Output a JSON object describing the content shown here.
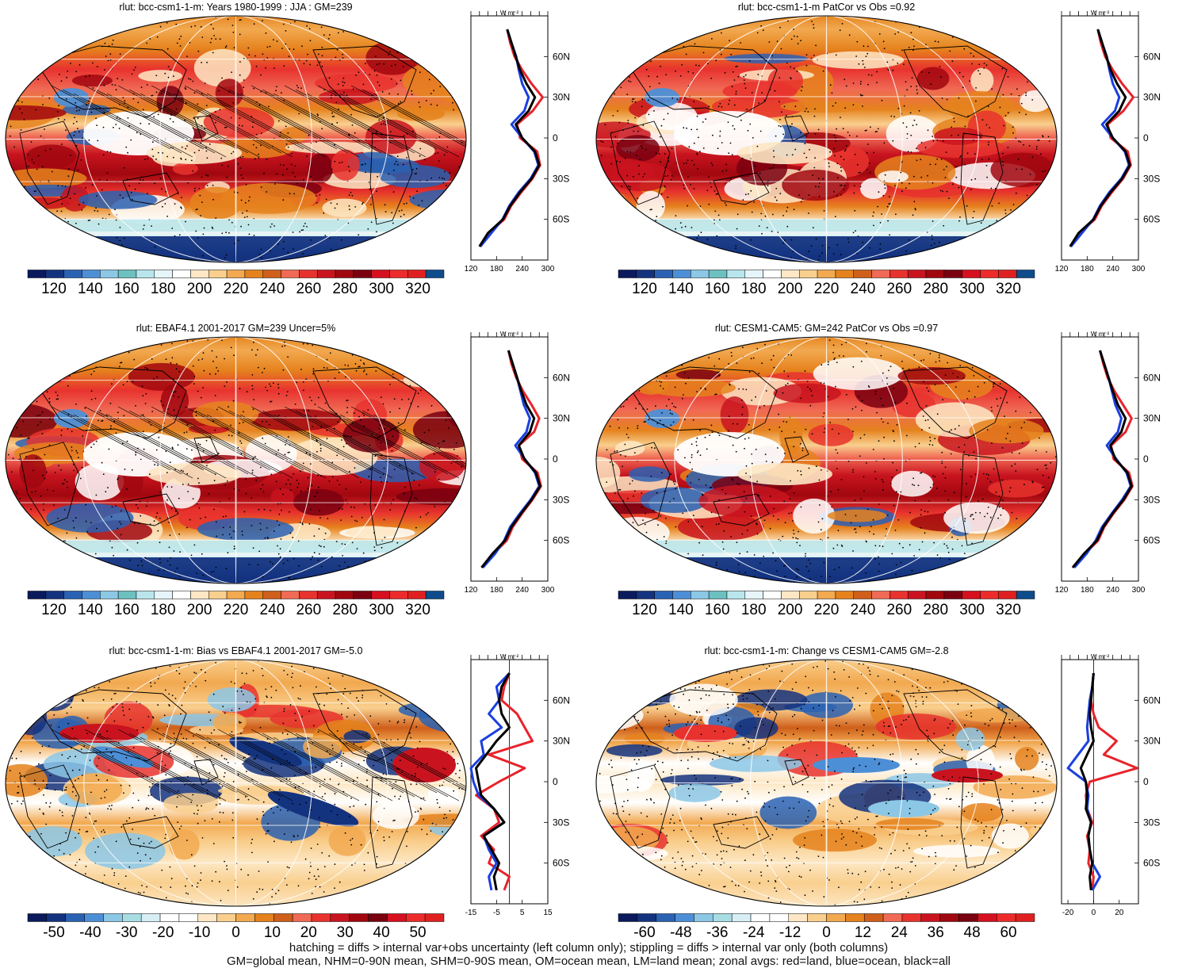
{
  "palette": {
    "full": [
      "#0a1a5c",
      "#14337f",
      "#2a62b3",
      "#4d8fd6",
      "#8cc7e6",
      "#6cc0c0",
      "#b8e6ec",
      "#e6f5f9",
      "#ffffff",
      "#fde7c4",
      "#f9cf8e",
      "#f2a950",
      "#e5821d",
      "#cf5f1a",
      "#f06a55",
      "#e8322e",
      "#c9141f",
      "#a1070f",
      "#7a0010",
      "#d6101f",
      "#ee2b2b",
      "#e02020",
      "#0e4c8c"
    ],
    "diff": [
      "#0a1a5c",
      "#14337f",
      "#2a62b3",
      "#4d8fd6",
      "#8cc7e6",
      "#a8dde4",
      "#d7eef5",
      "#ffffff",
      "#ffffff",
      "#fde7c4",
      "#f9cf8e",
      "#f2a950",
      "#e5821d",
      "#cf5f1a",
      "#f06a55",
      "#e8322e",
      "#c9141f",
      "#a1070f",
      "#7a0010",
      "#d6101f",
      "#ee2b2b",
      "#e02020"
    ]
  },
  "colors": {
    "land": "#e8232b",
    "ocean": "#1a3fe0",
    "all": "#000000"
  },
  "panels": [
    {
      "id": "p1",
      "title": "rlut: bcc-csm1-1-m: Years 1980-1999 : JJA : GM=239",
      "kind": "mean",
      "hatch": true,
      "colorbar_labels": [
        "120",
        "140",
        "160",
        "180",
        "200",
        "220",
        "240",
        "260",
        "280",
        "300",
        "320"
      ],
      "zonal_axis_top": "W m⁻²",
      "zonal_ticks": [
        "120",
        "180",
        "240",
        "300"
      ],
      "lat_labels": [
        "60N",
        "30N",
        "0",
        "30S",
        "60S"
      ]
    },
    {
      "id": "p2",
      "title": "rlut: bcc-csm1-1-m PatCor vs Obs =0.92",
      "kind": "mean",
      "hatch": false,
      "colorbar_labels": [
        "120",
        "140",
        "160",
        "180",
        "200",
        "220",
        "240",
        "260",
        "280",
        "300",
        "320"
      ],
      "zonal_axis_top": "W m⁻²",
      "zonal_ticks": [
        "120",
        "180",
        "240",
        "300"
      ],
      "lat_labels": [
        "60N",
        "30N",
        "0",
        "30S",
        "60S"
      ]
    },
    {
      "id": "p3",
      "title": "rlut: EBAF4.1 2001-2017 GM=239 Uncer=5%",
      "kind": "mean",
      "hatch": true,
      "colorbar_labels": [
        "120",
        "140",
        "160",
        "180",
        "200",
        "220",
        "240",
        "260",
        "280",
        "300",
        "320"
      ],
      "zonal_axis_top": "W m⁻²",
      "zonal_ticks": [
        "120",
        "180",
        "240",
        "300"
      ],
      "lat_labels": [
        "60N",
        "30N",
        "0",
        "30S",
        "60S"
      ]
    },
    {
      "id": "p4",
      "title": "rlut: CESM1-CAM5: GM=242 PatCor vs Obs =0.97",
      "kind": "mean",
      "hatch": false,
      "colorbar_labels": [
        "120",
        "140",
        "160",
        "180",
        "200",
        "220",
        "240",
        "260",
        "280",
        "300",
        "320"
      ],
      "zonal_axis_top": "W m⁻²",
      "zonal_ticks": [
        "120",
        "180",
        "240",
        "300"
      ],
      "lat_labels": [
        "60N",
        "30N",
        "0",
        "30S",
        "60S"
      ]
    },
    {
      "id": "p5",
      "title": "rlut: bcc-csm1-1-m: Bias vs EBAF4.1 2001-2017 GM=-5.0",
      "kind": "diff",
      "hatch": true,
      "colorbar_labels": [
        "-50",
        "-40",
        "-30",
        "-20",
        "-10",
        "0",
        "10",
        "20",
        "30",
        "40",
        "50"
      ],
      "zonal_axis_top": "W m⁻²",
      "zonal_ticks": [
        "-15",
        "-5",
        "5",
        "15"
      ],
      "lat_labels": [
        "60N",
        "30N",
        "0",
        "30S",
        "60S"
      ]
    },
    {
      "id": "p6",
      "title": "rlut: bcc-csm1-1-m: Change vs CESM1-CAM5 GM=-2.8",
      "kind": "diff",
      "hatch": false,
      "colorbar_labels": [
        "-60",
        "-48",
        "-36",
        "-24",
        "-12",
        "0",
        "12",
        "24",
        "36",
        "48",
        "60"
      ],
      "zonal_axis_top": "W m⁻²",
      "zonal_ticks": [
        "-20",
        "0",
        "20"
      ],
      "lat_labels": [
        "60N",
        "30N",
        "0",
        "30S",
        "60S"
      ]
    }
  ],
  "footer": {
    "line1": "hatching = diffs > internal var+obs uncertainty (left column only); stippling = diffs > internal var only (both columns)",
    "line2": "GM=global mean, NHM=0-90N mean, SHM=0-90S mean, OM=ocean mean, LM=land mean; zonal avgs: red=land, blue=ocean, black=all"
  },
  "chart_data": [
    {
      "type": "heatmap",
      "title": "rlut: bcc-csm1-1-m: Years 1980-1999 : JJA : GM=239",
      "colorbar_range": [
        120,
        320
      ],
      "zonal_profile": {
        "lat": [
          -80,
          -70,
          -60,
          -50,
          -40,
          -30,
          -20,
          -10,
          0,
          10,
          20,
          30,
          40,
          50,
          60,
          70,
          80
        ],
        "all": [
          140,
          160,
          195,
          212,
          235,
          262,
          280,
          270,
          240,
          225,
          255,
          270,
          250,
          235,
          225,
          215,
          205
        ],
        "land": [
          140,
          162,
          198,
          214,
          238,
          264,
          282,
          275,
          235,
          228,
          265,
          288,
          262,
          240,
          222,
          212,
          205
        ],
        "ocean": [
          142,
          168,
          194,
          210,
          232,
          260,
          278,
          268,
          240,
          215,
          245,
          255,
          240,
          232,
          226,
          215,
          205
        ],
        "xlim": [
          120,
          300
        ]
      }
    },
    {
      "type": "heatmap",
      "title": "rlut: bcc-csm1-1-m PatCor vs Obs =0.92",
      "colorbar_range": [
        120,
        320
      ],
      "zonal_profile": {
        "lat": [
          -80,
          -70,
          -60,
          -50,
          -40,
          -30,
          -20,
          -10,
          0,
          10,
          20,
          30,
          40,
          50,
          60,
          70,
          80
        ],
        "all": [
          140,
          160,
          195,
          212,
          235,
          262,
          280,
          270,
          240,
          225,
          255,
          270,
          250,
          235,
          225,
          215,
          205
        ],
        "land": [
          140,
          162,
          198,
          214,
          238,
          264,
          282,
          275,
          235,
          228,
          265,
          288,
          262,
          240,
          222,
          212,
          205
        ],
        "ocean": [
          142,
          168,
          194,
          210,
          232,
          260,
          278,
          268,
          240,
          215,
          245,
          255,
          240,
          232,
          226,
          215,
          205
        ],
        "xlim": [
          120,
          300
        ]
      }
    },
    {
      "type": "heatmap",
      "title": "rlut: EBAF4.1 2001-2017 GM=239 Uncer=5%",
      "colorbar_range": [
        120,
        320
      ],
      "zonal_profile": {
        "lat": [
          -80,
          -70,
          -60,
          -50,
          -40,
          -30,
          -20,
          -10,
          0,
          10,
          20,
          30,
          40,
          50,
          60,
          70,
          80
        ],
        "all": [
          145,
          170,
          200,
          215,
          238,
          262,
          282,
          272,
          245,
          232,
          258,
          268,
          250,
          238,
          228,
          218,
          208
        ],
        "land": [
          145,
          172,
          204,
          218,
          240,
          264,
          284,
          276,
          240,
          232,
          268,
          280,
          262,
          242,
          226,
          215,
          208
        ],
        "ocean": [
          148,
          176,
          198,
          212,
          235,
          260,
          280,
          270,
          246,
          224,
          250,
          258,
          244,
          236,
          228,
          218,
          208
        ],
        "xlim": [
          120,
          300
        ]
      }
    },
    {
      "type": "heatmap",
      "title": "rlut: CESM1-CAM5: GM=242 PatCor vs Obs =0.97",
      "colorbar_range": [
        120,
        320
      ],
      "zonal_profile": {
        "lat": [
          -80,
          -70,
          -60,
          -50,
          -40,
          -30,
          -20,
          -10,
          0,
          10,
          20,
          30,
          40,
          50,
          60,
          70,
          80
        ],
        "all": [
          146,
          172,
          203,
          218,
          240,
          265,
          284,
          274,
          246,
          234,
          260,
          270,
          252,
          240,
          230,
          220,
          210
        ],
        "land": [
          146,
          174,
          206,
          220,
          242,
          267,
          286,
          278,
          242,
          236,
          270,
          284,
          264,
          244,
          228,
          218,
          210
        ],
        "ocean": [
          150,
          178,
          200,
          215,
          238,
          262,
          282,
          272,
          248,
          226,
          252,
          260,
          246,
          238,
          230,
          220,
          210
        ],
        "xlim": [
          120,
          300
        ]
      }
    },
    {
      "type": "heatmap",
      "title": "rlut: bcc-csm1-1-m: Bias vs EBAF4.1 2001-2017 GM=-5.0",
      "colorbar_range": [
        -50,
        50
      ],
      "zonal_profile": {
        "lat": [
          -80,
          -70,
          -60,
          -50,
          -40,
          -30,
          -20,
          -10,
          0,
          10,
          20,
          30,
          40,
          50,
          60,
          70,
          80
        ],
        "all": [
          -5,
          -6,
          -4,
          -7,
          -10,
          -2,
          -6,
          -11,
          -12,
          -13,
          -9,
          -5,
          0,
          -3,
          -4,
          -3,
          0
        ],
        "land": [
          -2,
          0,
          -8,
          -6,
          -11,
          -4,
          -6,
          -13,
          -4,
          6,
          -8,
          9,
          6,
          3,
          -3,
          -2,
          0
        ],
        "ocean": [
          -7,
          -8,
          -5,
          -8,
          -10,
          -2,
          -6,
          -12,
          -14,
          -15,
          -10,
          -11,
          -3,
          -8,
          -4,
          -5,
          0
        ],
        "xlim": [
          -15,
          15
        ]
      }
    },
    {
      "type": "heatmap",
      "title": "rlut: bcc-csm1-1-m: Change vs CESM1-CAM5 GM=-2.8",
      "colorbar_range": [
        -60,
        60
      ],
      "zonal_profile": {
        "lat": [
          -80,
          -70,
          -60,
          -50,
          -40,
          -30,
          -20,
          -10,
          0,
          10,
          20,
          30,
          40,
          50,
          60,
          70,
          80
        ],
        "all": [
          -2,
          -3,
          -1,
          -3,
          -4,
          -2,
          -6,
          -5,
          -6,
          -10,
          -5,
          0,
          -2,
          -3,
          -2,
          -1,
          0
        ],
        "land": [
          -1,
          0,
          -4,
          -3,
          -5,
          -1,
          -5,
          -6,
          -3,
          34,
          8,
          18,
          4,
          0,
          -2,
          -1,
          0
        ],
        "ocean": [
          -1,
          5,
          -1,
          -3,
          -4,
          -2,
          -5,
          -4,
          -6,
          -20,
          -12,
          -4,
          -5,
          -4,
          -3,
          -1,
          0
        ],
        "xlim": [
          -25,
          35
        ]
      }
    }
  ]
}
